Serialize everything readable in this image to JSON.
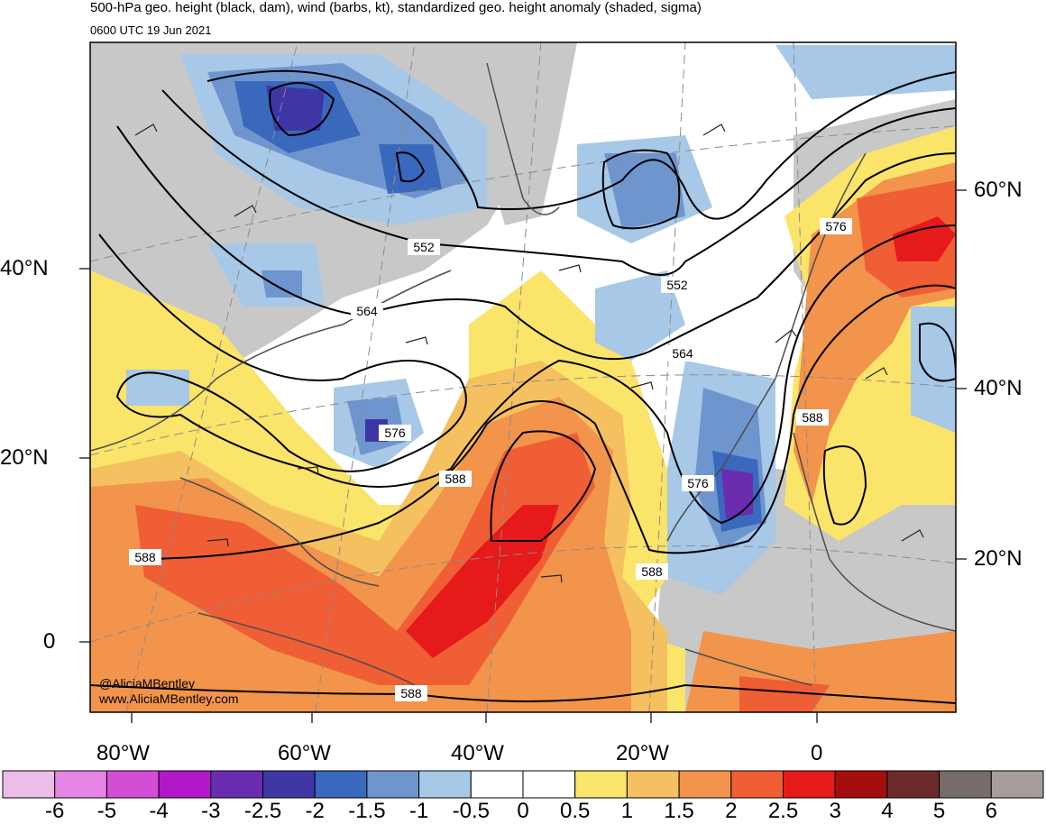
{
  "header": {
    "title": "500-hPa geo. height (black, dam), wind (barbs, kt), standardized geo. height anomaly (shaded, sigma)",
    "valid_time": "0600 UTC 19 Jun 2021"
  },
  "credits": {
    "handle": "@AliciaMBentley",
    "website": "www.AliciaMBentley.com"
  },
  "lat_labels_left": [
    "40°N",
    "20°N",
    "0"
  ],
  "lat_labels_right": [
    "60°N",
    "40°N",
    "20°N"
  ],
  "lon_labels": [
    "80°W",
    "60°W",
    "40°W",
    "20°W",
    "0"
  ],
  "contour_labels": [
    "552",
    "564",
    "576",
    "588",
    "552",
    "564",
    "576",
    "588",
    "576",
    "588",
    "588",
    "588"
  ],
  "colorbar": {
    "ticks": [
      "-6",
      "-5",
      "-4",
      "-3",
      "-2.5",
      "-2",
      "-1.5",
      "-1",
      "-0.5",
      "0",
      "0.5",
      "1",
      "1.5",
      "2",
      "2.5",
      "3",
      "4",
      "5",
      "6"
    ],
    "colors": [
      "#ebbde8",
      "#e586e4",
      "#d54dd6",
      "#b218c9",
      "#6a2db0",
      "#3f36a6",
      "#3a68bd",
      "#6f95cf",
      "#a7c8e7",
      "#ffffff",
      "#ffffff",
      "#fbe46a",
      "#f4c060",
      "#f2944b",
      "#ef5e35",
      "#e61a1a",
      "#a40d0d",
      "#6c2a2a",
      "#776b6b",
      "#a89d9d"
    ]
  },
  "colors": {
    "land": "#c8c8c8",
    "coast": "#4d4d4d",
    "contour": "#000000",
    "grid": "#8c8c8c"
  }
}
